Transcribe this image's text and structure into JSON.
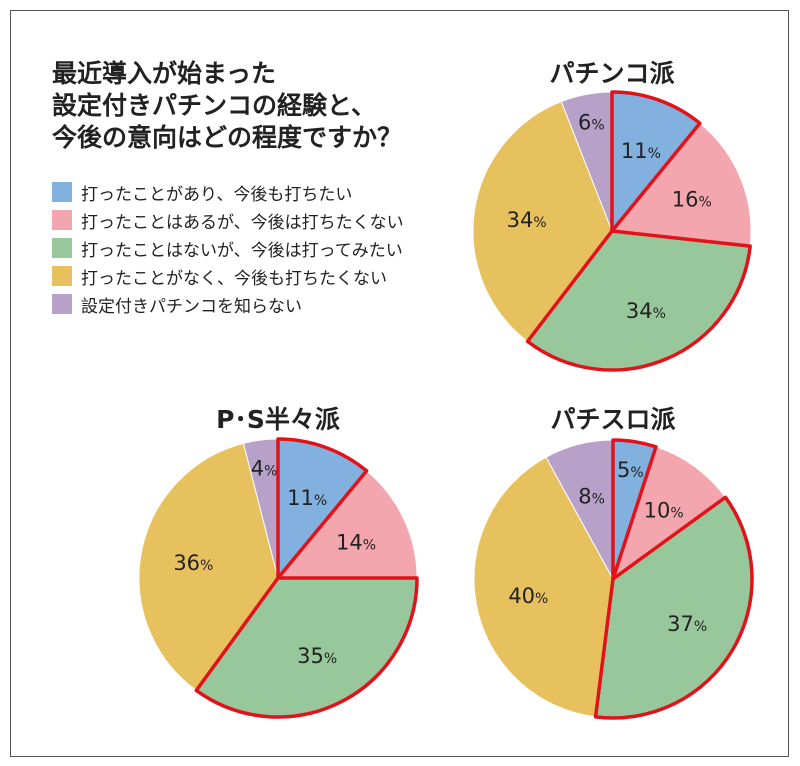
{
  "title_lines": [
    "最近導入が始まった",
    "設定付きパチンコの経験と、",
    "今後の意向はどの程度ですか？"
  ],
  "chart_data": {
    "type": "pie",
    "categories": [
      "打ったことがあり、今後も打ちたい",
      "打ったことはあるが、今後は打ちたくない",
      "打ったことはないが、今後は打ってみたい",
      "打ったことがなく、今後も打ちたくない",
      "設定付きパチンコを知らない"
    ],
    "colors": [
      "#82b1df",
      "#f3a6ad",
      "#97c79b",
      "#e8c15f",
      "#b7a1c9"
    ],
    "highlight_color": "#e2121b",
    "highlighted_categories": [
      0,
      2
    ],
    "legend": "top-left",
    "pies": [
      {
        "name": "パチンコ派",
        "values": [
          11,
          16,
          34,
          34,
          6
        ]
      },
      {
        "name": "P･S半々派",
        "values": [
          11,
          14,
          35,
          36,
          4
        ]
      },
      {
        "name": "パチスロ派",
        "values": [
          5,
          10,
          37,
          40,
          8
        ]
      }
    ]
  }
}
